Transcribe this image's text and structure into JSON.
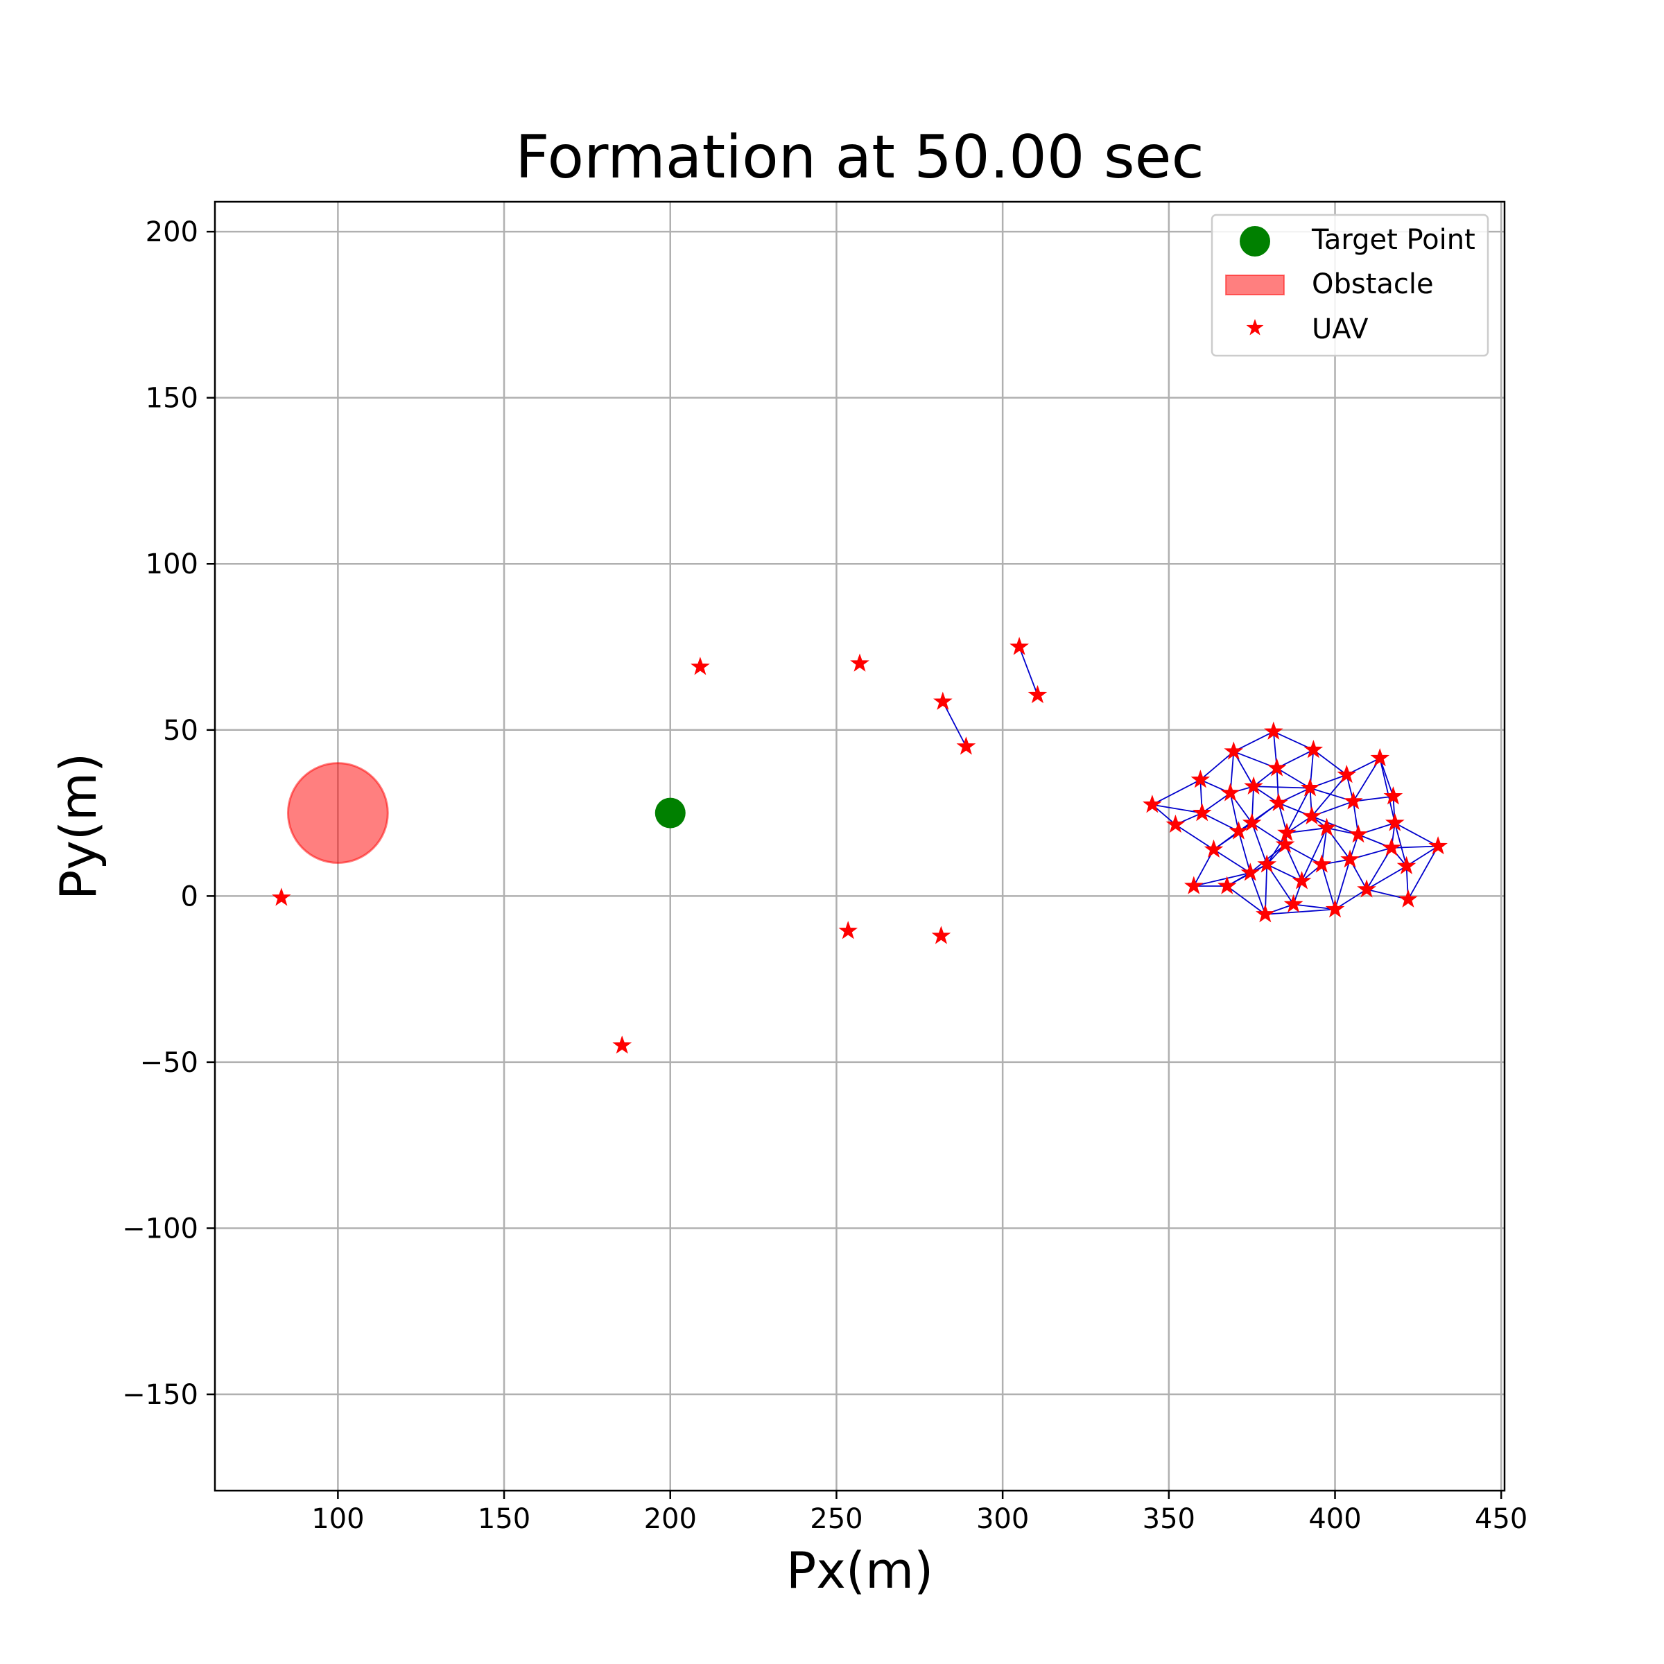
{
  "chart_data": {
    "type": "scatter",
    "title": "Formation at 50.00 sec",
    "xlabel": "Px(m)",
    "ylabel": "Py(m)",
    "xlim": [
      63,
      451
    ],
    "ylim": [
      -179,
      209
    ],
    "xticks": [
      100,
      150,
      200,
      250,
      300,
      350,
      400,
      450
    ],
    "yticks": [
      -150,
      -100,
      -50,
      0,
      50,
      100,
      150,
      200
    ],
    "grid": true,
    "legend_position": "top-right",
    "legend": [
      {
        "label": "Target Point",
        "kind": "circle-marker",
        "color": "#008000"
      },
      {
        "label": "Obstacle",
        "kind": "patch",
        "color": "#ff6666"
      },
      {
        "label": "UAV",
        "kind": "star-marker",
        "color": "#ff0000"
      }
    ],
    "target_point": {
      "x": 200,
      "y": 25,
      "color": "#008000"
    },
    "obstacle": {
      "x": 100,
      "y": 25,
      "radius": 15,
      "color": "#ff0000",
      "alpha": 0.5
    },
    "link_color": "#0000cc",
    "uav_color": "#ff0000",
    "uavs": [
      {
        "x": 83,
        "y": -0.5
      },
      {
        "x": 185.5,
        "y": -45
      },
      {
        "x": 209,
        "y": 69
      },
      {
        "x": 253.5,
        "y": -10.5
      },
      {
        "x": 257,
        "y": 70
      },
      {
        "x": 281.5,
        "y": -12
      },
      {
        "x": 282,
        "y": 58.5
      },
      {
        "x": 289,
        "y": 45
      },
      {
        "x": 305,
        "y": 75
      },
      {
        "x": 310.5,
        "y": 60.5
      },
      {
        "x": 345,
        "y": 27.5
      },
      {
        "x": 352,
        "y": 21.5
      },
      {
        "x": 357.5,
        "y": 3
      },
      {
        "x": 359.5,
        "y": 35
      },
      {
        "x": 360,
        "y": 25
      },
      {
        "x": 363.5,
        "y": 14
      },
      {
        "x": 367.5,
        "y": 3
      },
      {
        "x": 368.5,
        "y": 31
      },
      {
        "x": 369.5,
        "y": 43.5
      },
      {
        "x": 371,
        "y": 19.5
      },
      {
        "x": 374.5,
        "y": 7
      },
      {
        "x": 375,
        "y": 22
      },
      {
        "x": 375.5,
        "y": 33
      },
      {
        "x": 379,
        "y": -5.5
      },
      {
        "x": 379.5,
        "y": 9.5
      },
      {
        "x": 381.5,
        "y": 49.5
      },
      {
        "x": 382.5,
        "y": 38.5
      },
      {
        "x": 383,
        "y": 28
      },
      {
        "x": 385,
        "y": 15.5
      },
      {
        "x": 385.5,
        "y": 19
      },
      {
        "x": 387.5,
        "y": -2.5
      },
      {
        "x": 390,
        "y": 4.5
      },
      {
        "x": 392.5,
        "y": 32.5
      },
      {
        "x": 393,
        "y": 24
      },
      {
        "x": 393.5,
        "y": 44
      },
      {
        "x": 396,
        "y": 9.5
      },
      {
        "x": 397.5,
        "y": 20.5
      },
      {
        "x": 400,
        "y": -4
      },
      {
        "x": 403.5,
        "y": 36.5
      },
      {
        "x": 404.5,
        "y": 11
      },
      {
        "x": 405.5,
        "y": 28.5
      },
      {
        "x": 407,
        "y": 18.5
      },
      {
        "x": 409.5,
        "y": 2
      },
      {
        "x": 413.5,
        "y": 41.5
      },
      {
        "x": 417,
        "y": 14.5
      },
      {
        "x": 417.5,
        "y": 30
      },
      {
        "x": 418,
        "y": 22
      },
      {
        "x": 421.5,
        "y": 9
      },
      {
        "x": 422,
        "y": -1
      },
      {
        "x": 431,
        "y": 15
      }
    ],
    "links": [
      [
        6,
        7
      ],
      [
        8,
        9
      ],
      [
        10,
        11
      ],
      [
        10,
        13
      ],
      [
        10,
        14
      ],
      [
        11,
        14
      ],
      [
        11,
        15
      ],
      [
        12,
        15
      ],
      [
        12,
        16
      ],
      [
        13,
        14
      ],
      [
        13,
        17
      ],
      [
        13,
        18
      ],
      [
        14,
        17
      ],
      [
        14,
        19
      ],
      [
        15,
        19
      ],
      [
        15,
        20
      ],
      [
        15,
        21
      ],
      [
        16,
        20
      ],
      [
        16,
        24
      ],
      [
        17,
        18
      ],
      [
        17,
        19
      ],
      [
        17,
        21
      ],
      [
        17,
        22
      ],
      [
        18,
        22
      ],
      [
        18,
        25
      ],
      [
        18,
        26
      ],
      [
        19,
        20
      ],
      [
        19,
        21
      ],
      [
        19,
        27
      ],
      [
        20,
        23
      ],
      [
        20,
        24
      ],
      [
        20,
        28
      ],
      [
        21,
        24
      ],
      [
        21,
        27
      ],
      [
        21,
        28
      ],
      [
        22,
        26
      ],
      [
        22,
        27
      ],
      [
        22,
        32
      ],
      [
        23,
        24
      ],
      [
        23,
        30
      ],
      [
        24,
        28
      ],
      [
        24,
        30
      ],
      [
        24,
        31
      ],
      [
        24,
        29
      ],
      [
        25,
        26
      ],
      [
        25,
        34
      ],
      [
        26,
        27
      ],
      [
        26,
        32
      ],
      [
        26,
        34
      ],
      [
        27,
        29
      ],
      [
        27,
        32
      ],
      [
        27,
        33
      ],
      [
        28,
        29
      ],
      [
        28,
        31
      ],
      [
        28,
        35
      ],
      [
        29,
        33
      ],
      [
        29,
        36
      ],
      [
        30,
        31
      ],
      [
        30,
        37
      ],
      [
        31,
        35
      ],
      [
        31,
        36
      ],
      [
        32,
        33
      ],
      [
        32,
        34
      ],
      [
        32,
        38
      ],
      [
        32,
        40
      ],
      [
        33,
        36
      ],
      [
        33,
        38
      ],
      [
        33,
        40
      ],
      [
        33,
        41
      ],
      [
        34,
        38
      ],
      [
        35,
        36
      ],
      [
        35,
        37
      ],
      [
        35,
        39
      ],
      [
        36,
        39
      ],
      [
        36,
        41
      ],
      [
        37,
        39
      ],
      [
        37,
        42
      ],
      [
        38,
        40
      ],
      [
        38,
        43
      ],
      [
        39,
        41
      ],
      [
        39,
        42
      ],
      [
        39,
        44
      ],
      [
        40,
        41
      ],
      [
        40,
        45
      ],
      [
        40,
        43
      ],
      [
        41,
        44
      ],
      [
        41,
        46
      ],
      [
        42,
        44
      ],
      [
        42,
        47
      ],
      [
        43,
        45
      ],
      [
        43,
        46
      ],
      [
        44,
        46
      ],
      [
        44,
        47
      ],
      [
        44,
        49
      ],
      [
        45,
        46
      ],
      [
        46,
        47
      ],
      [
        46,
        49
      ],
      [
        47,
        48
      ],
      [
        47,
        49
      ],
      [
        48,
        49
      ],
      [
        42,
        48
      ],
      [
        23,
        37
      ],
      [
        16,
        23
      ],
      [
        12,
        20
      ],
      [
        29,
        32
      ],
      [
        21,
        22
      ]
    ]
  }
}
